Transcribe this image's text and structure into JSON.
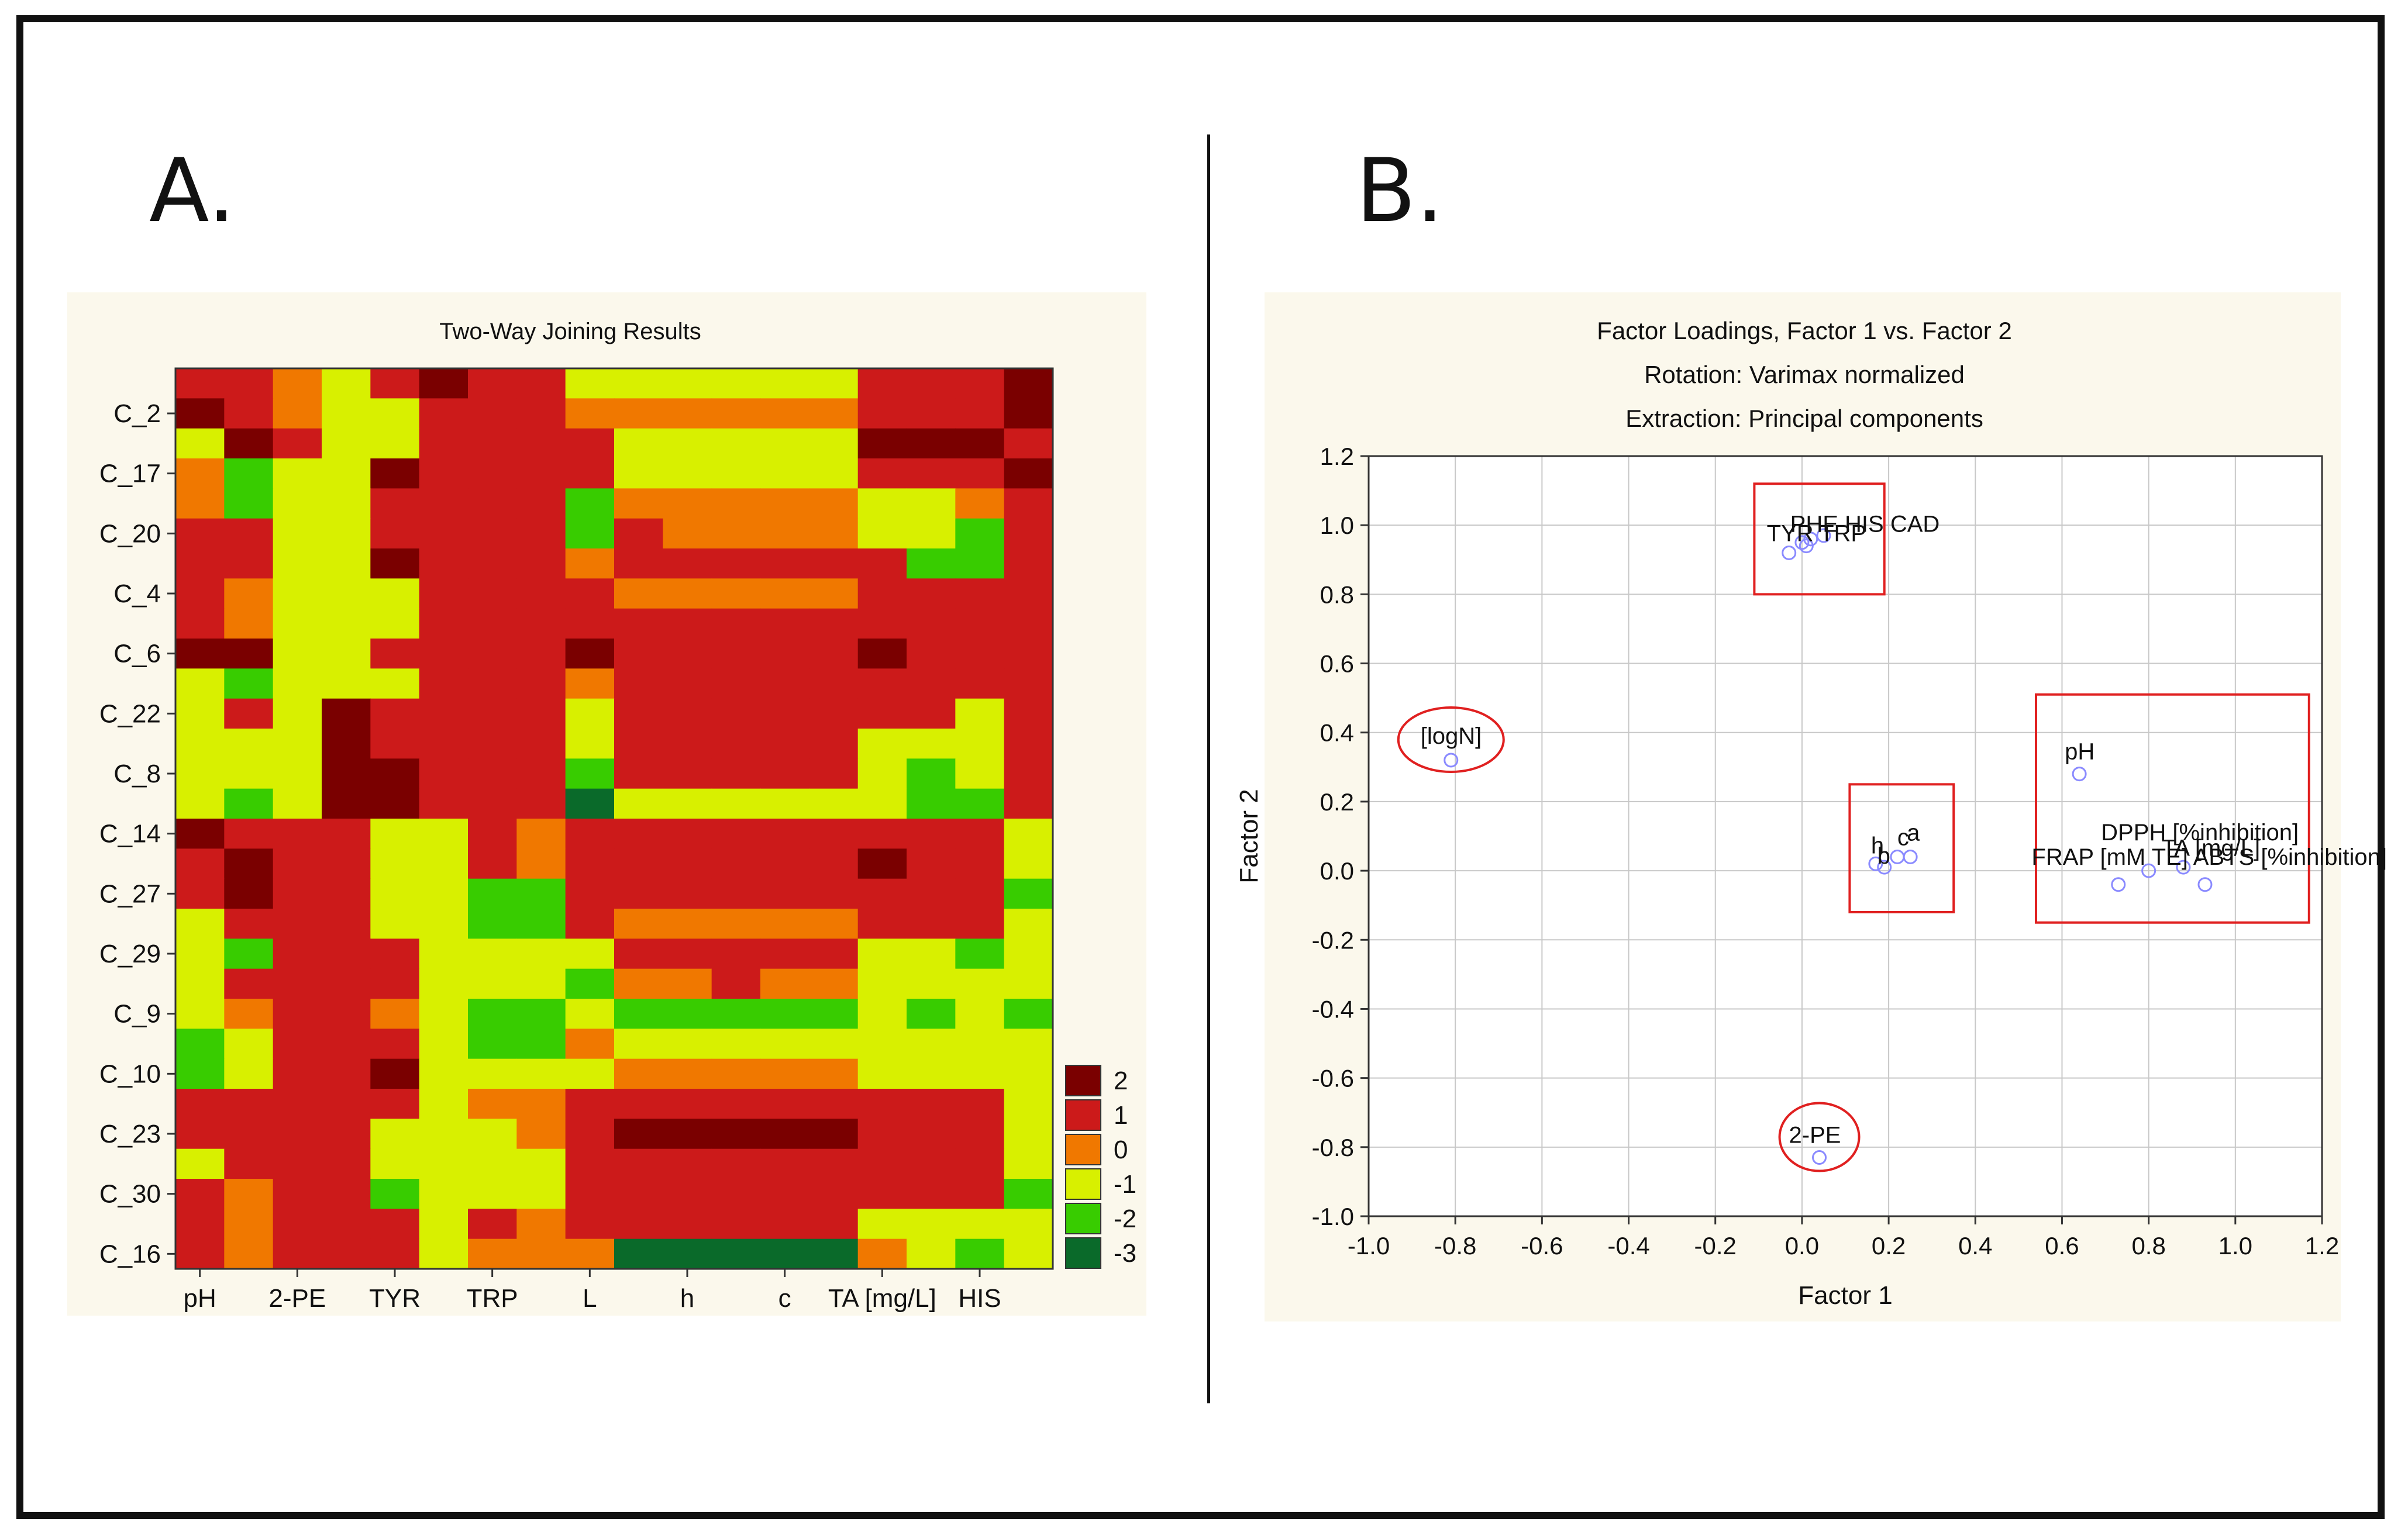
{
  "panels": {
    "a": {
      "letter": "A."
    },
    "b": {
      "letter": "B."
    }
  },
  "chart_data": [
    {
      "type": "heatmap",
      "title": "Two-Way Joining Results",
      "xlabel": "",
      "ylabel": "",
      "x_tick_labels": [
        "pH",
        "2-PE",
        "TYR",
        "TRP",
        "L",
        "h",
        "c",
        "TA [mg/L]",
        "HIS"
      ],
      "y_tick_labels": [
        "C_2",
        "C_17",
        "C_20",
        "C_4",
        "C_6",
        "C_22",
        "C_8",
        "C_14",
        "C_27",
        "C_29",
        "C_9",
        "C_10",
        "C_23",
        "C_30",
        "C_16"
      ],
      "n_rows": 30,
      "n_cols": 18,
      "colorbar": {
        "levels": [
          2,
          1,
          0,
          -1,
          -2,
          -3
        ],
        "colors": [
          "#7a0000",
          "#cc1a1a",
          "#f07800",
          "#d8f000",
          "#38cc00",
          "#0a6a2a"
        ],
        "labels": [
          "2",
          "1",
          "0",
          "-1",
          "-2",
          "-3"
        ]
      },
      "values": [
        [
          1,
          1,
          0,
          -1,
          1,
          2,
          1,
          1,
          -1,
          -1,
          -1,
          -1,
          -1,
          -1,
          1,
          1,
          1,
          2
        ],
        [
          2,
          1,
          0,
          -1,
          -1,
          1,
          1,
          1,
          0,
          0,
          0,
          0,
          0,
          0,
          1,
          1,
          1,
          2
        ],
        [
          -1,
          2,
          1,
          -1,
          -1,
          1,
          1,
          1,
          1,
          -1,
          -1,
          -1,
          -1,
          -1,
          2,
          2,
          2,
          1
        ],
        [
          0,
          -2,
          -1,
          -1,
          2,
          1,
          1,
          1,
          1,
          -1,
          -1,
          -1,
          -1,
          -1,
          1,
          1,
          1,
          2
        ],
        [
          0,
          -2,
          -1,
          -1,
          1,
          1,
          1,
          1,
          -2,
          0,
          0,
          0,
          0,
          0,
          -1,
          -1,
          0,
          1
        ],
        [
          1,
          1,
          -1,
          -1,
          1,
          1,
          1,
          1,
          -2,
          1,
          0,
          0,
          0,
          0,
          -1,
          -1,
          -2,
          1
        ],
        [
          1,
          1,
          -1,
          -1,
          2,
          1,
          1,
          1,
          0,
          1,
          1,
          1,
          1,
          1,
          1,
          -2,
          -2,
          1
        ],
        [
          1,
          0,
          -1,
          -1,
          -1,
          1,
          1,
          1,
          1,
          0,
          0,
          0,
          0,
          0,
          1,
          1,
          1,
          1
        ],
        [
          1,
          0,
          -1,
          -1,
          -1,
          1,
          1,
          1,
          1,
          1,
          1,
          1,
          1,
          1,
          1,
          1,
          1,
          1
        ],
        [
          2,
          2,
          -1,
          -1,
          1,
          1,
          1,
          1,
          2,
          1,
          1,
          1,
          1,
          1,
          2,
          1,
          1,
          1
        ],
        [
          -1,
          -2,
          -1,
          -1,
          -1,
          1,
          1,
          1,
          0,
          1,
          1,
          1,
          1,
          1,
          1,
          1,
          1,
          1
        ],
        [
          -1,
          1,
          -1,
          2,
          1,
          1,
          1,
          1,
          -1,
          1,
          1,
          1,
          1,
          1,
          1,
          1,
          -1,
          1
        ],
        [
          -1,
          -1,
          -1,
          2,
          1,
          1,
          1,
          1,
          -1,
          1,
          1,
          1,
          1,
          1,
          -1,
          -1,
          -1,
          1
        ],
        [
          -1,
          -1,
          -1,
          2,
          2,
          1,
          1,
          1,
          -2,
          1,
          1,
          1,
          1,
          1,
          -1,
          -2,
          -1,
          1
        ],
        [
          -1,
          -2,
          -1,
          2,
          2,
          1,
          1,
          1,
          -3,
          -1,
          -1,
          -1,
          -1,
          -1,
          -1,
          -2,
          -2,
          1
        ],
        [
          2,
          1,
          1,
          1,
          -1,
          -1,
          1,
          0,
          1,
          1,
          1,
          1,
          1,
          1,
          1,
          1,
          1,
          -1
        ],
        [
          1,
          2,
          1,
          1,
          -1,
          -1,
          1,
          0,
          1,
          1,
          1,
          1,
          1,
          1,
          2,
          1,
          1,
          -1
        ],
        [
          1,
          2,
          1,
          1,
          -1,
          -1,
          -2,
          -2,
          1,
          1,
          1,
          1,
          1,
          1,
          1,
          1,
          1,
          -2
        ],
        [
          -1,
          1,
          1,
          1,
          -1,
          -1,
          -2,
          -2,
          1,
          0,
          0,
          0,
          0,
          0,
          1,
          1,
          1,
          -1
        ],
        [
          -1,
          -2,
          1,
          1,
          1,
          -1,
          -1,
          -1,
          -1,
          1,
          1,
          1,
          1,
          1,
          -1,
          -1,
          -2,
          -1
        ],
        [
          -1,
          1,
          1,
          1,
          1,
          -1,
          -1,
          -1,
          -2,
          0,
          0,
          1,
          0,
          0,
          -1,
          -1,
          -1,
          -1
        ],
        [
          -1,
          0,
          1,
          1,
          0,
          -1,
          -2,
          -2,
          -1,
          -2,
          -2,
          -2,
          -2,
          -2,
          -1,
          -2,
          -1,
          -2
        ],
        [
          -2,
          -1,
          1,
          1,
          1,
          -1,
          -2,
          -2,
          0,
          -1,
          -1,
          -1,
          -1,
          -1,
          -1,
          -1,
          -1,
          -1
        ],
        [
          -2,
          -1,
          1,
          1,
          2,
          -1,
          -1,
          -1,
          -1,
          0,
          0,
          0,
          0,
          0,
          -1,
          -1,
          -1,
          -1
        ],
        [
          1,
          1,
          1,
          1,
          1,
          -1,
          0,
          0,
          1,
          1,
          1,
          1,
          1,
          1,
          1,
          1,
          1,
          -1
        ],
        [
          1,
          1,
          1,
          1,
          -1,
          -1,
          -1,
          0,
          1,
          2,
          2,
          2,
          2,
          2,
          1,
          1,
          1,
          -1
        ],
        [
          -1,
          1,
          1,
          1,
          -1,
          -1,
          -1,
          -1,
          1,
          1,
          1,
          1,
          1,
          1,
          1,
          1,
          1,
          -1
        ],
        [
          1,
          0,
          1,
          1,
          -2,
          -1,
          -1,
          -1,
          1,
          1,
          1,
          1,
          1,
          1,
          1,
          1,
          1,
          -2
        ],
        [
          1,
          0,
          1,
          1,
          1,
          -1,
          1,
          0,
          1,
          1,
          1,
          1,
          1,
          1,
          -1,
          -1,
          -1,
          -1
        ],
        [
          1,
          0,
          1,
          1,
          1,
          -1,
          0,
          0,
          0,
          -3,
          -3,
          -3,
          -3,
          -3,
          0,
          -1,
          -2,
          -1
        ]
      ]
    },
    {
      "type": "scatter",
      "title": "Factor Loadings, Factor 1 vs. Factor 2",
      "subtitle_1": "Rotation: Varimax normalized",
      "subtitle_2": "Extraction: Principal components",
      "xlabel": "Factor 1",
      "ylabel": "Factor 2",
      "xlim": [
        -1.0,
        1.2
      ],
      "ylim": [
        -1.0,
        1.2
      ],
      "x_tick_labels": [
        "-1.0",
        "-0.8",
        "-0.6",
        "-0.4",
        "-0.2",
        "0.0",
        "0.2",
        "0.4",
        "0.6",
        "0.8",
        "1.0",
        "1.2"
      ],
      "y_tick_labels": [
        "1.2",
        "1.0",
        "0.8",
        "0.6",
        "0.4",
        "0.2",
        "0.0",
        "-0.2",
        "-0.4",
        "-0.6",
        "-0.8",
        "-1.0"
      ],
      "grid": true,
      "points": [
        {
          "label": "[logN]",
          "x": -0.81,
          "y": 0.32
        },
        {
          "label": "2-PE",
          "x": 0.04,
          "y": -0.83
        },
        {
          "label": "pH",
          "x": 0.64,
          "y": 0.28
        },
        {
          "label": "TYR",
          "x": -0.03,
          "y": 0.92
        },
        {
          "label": "PHE",
          "x": 0.0,
          "y": 0.95
        },
        {
          "label": "HIS",
          "x": 0.01,
          "y": 0.94
        },
        {
          "label": "TRP",
          "x": 0.02,
          "y": 0.96
        },
        {
          "label": "CAD",
          "x": 0.05,
          "y": 0.97
        },
        {
          "label": "h",
          "x": 0.17,
          "y": 0.02
        },
        {
          "label": "b",
          "x": 0.19,
          "y": 0.01
        },
        {
          "label": "c",
          "x": 0.22,
          "y": 0.04
        },
        {
          "label": "a",
          "x": 0.25,
          "y": 0.04
        },
        {
          "label": "DPPH [%inhibition]",
          "x": 0.93,
          "y": -0.04
        },
        {
          "label": "FRAP [mM TE]",
          "x": 0.73,
          "y": -0.04
        },
        {
          "label": "ABTS [%inhibition]",
          "x": 0.8,
          "y": 0.0
        },
        {
          "label": "TA [mg/L]",
          "x": 0.88,
          "y": 0.01
        }
      ],
      "annotations": [
        {
          "kind": "ellipse",
          "around": "[logN]"
        },
        {
          "kind": "ellipse",
          "around": "2-PE"
        },
        {
          "kind": "rectangle",
          "around": [
            "TYR",
            "PHE",
            "HIS",
            "TRP",
            "CAD"
          ],
          "x_range": [
            -0.11,
            0.19
          ],
          "y_range": [
            0.8,
            1.12
          ]
        },
        {
          "kind": "rectangle",
          "around": [
            "h",
            "b",
            "c",
            "a"
          ],
          "x_range": [
            0.11,
            0.35
          ],
          "y_range": [
            -0.12,
            0.25
          ]
        },
        {
          "kind": "rectangle",
          "around": [
            "pH",
            "DPPH [%inhibition]",
            "FRAP [mM TE]",
            "ABTS [%inhibition]",
            "TA [mg/L]"
          ],
          "x_range": [
            0.54,
            1.17
          ],
          "y_range": [
            -0.15,
            0.51
          ]
        }
      ],
      "label_texts": {
        "logN": "[logN]",
        "pe": "2-PE",
        "ph": "pH",
        "dpph": "DPPH [%inhibition]",
        "frap_row": "FRAP [mM TE] ABTS [%inhibition]",
        "ta": "TA [mg/L]",
        "amines_1": "PHE HIS CAD",
        "amines_2": "TYR TRP",
        "color_h": "h",
        "color_b": "b",
        "color_c": "c",
        "color_a": "a"
      }
    }
  ]
}
